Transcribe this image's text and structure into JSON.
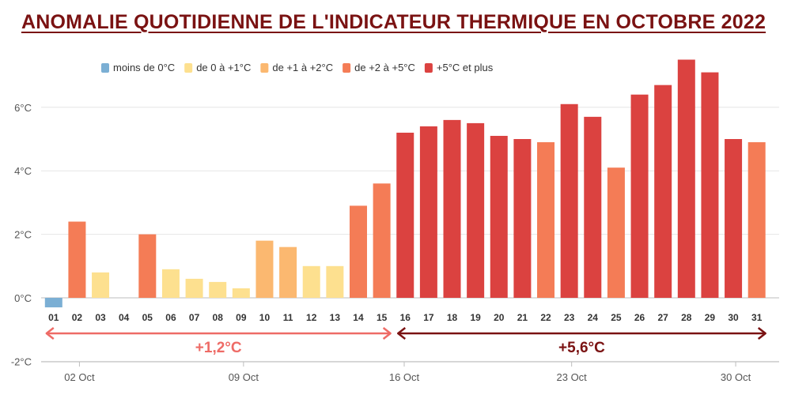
{
  "title": "ANOMALIE QUOTIDIENNE DE L'INDICATEUR THERMIQUE EN OCTOBRE 2022",
  "colors": {
    "title": "#7a1212",
    "below0": "#7bafd4",
    "0to1": "#fde08f",
    "1to2": "#fbb870",
    "2to5": "#f47c56",
    "5plus": "#db4240",
    "annotation_left": "#ee6b66",
    "annotation_right": "#7a1212"
  },
  "legend": [
    {
      "label": "moins de 0°C",
      "color": "#7bafd4"
    },
    {
      "label": "de 0 à +1°C",
      "color": "#fde08f"
    },
    {
      "label": "de +1 à +2°C",
      "color": "#fbb870"
    },
    {
      "label": "de +2 à +5°C",
      "color": "#f47c56"
    },
    {
      "label": "+5°C et plus",
      "color": "#db4240"
    }
  ],
  "chart_data": {
    "type": "bar",
    "title": "ANOMALIE QUOTIDIENNE DE L'INDICATEUR THERMIQUE EN OCTOBRE 2022",
    "categories": [
      "01",
      "02",
      "03",
      "04",
      "05",
      "06",
      "07",
      "08",
      "09",
      "10",
      "11",
      "12",
      "13",
      "14",
      "15",
      "16",
      "17",
      "18",
      "19",
      "20",
      "21",
      "22",
      "23",
      "24",
      "25",
      "26",
      "27",
      "28",
      "29",
      "30",
      "31"
    ],
    "values": [
      -0.3,
      2.4,
      0.8,
      0.0,
      2.0,
      0.9,
      0.6,
      0.5,
      0.3,
      1.8,
      1.6,
      1.0,
      1.0,
      2.9,
      3.6,
      5.2,
      5.4,
      5.6,
      5.5,
      5.1,
      5.0,
      4.9,
      6.1,
      5.7,
      4.1,
      6.4,
      6.7,
      7.5,
      7.1,
      5.0,
      4.9
    ],
    "ylim": [
      -2,
      7.5
    ],
    "yticks": [
      "-2°C",
      "0°C",
      "2°C",
      "4°C",
      "6°C"
    ],
    "ytick_values": [
      -2,
      0,
      2,
      4,
      6
    ],
    "xticks": [
      "02 Oct",
      "09 Oct",
      "16 Oct",
      "23 Oct",
      "30 Oct"
    ],
    "xtick_days": [
      2,
      9,
      16,
      23,
      30
    ],
    "grid": true,
    "legend_position": "top-left",
    "annotations": [
      {
        "label": "+1,2°C",
        "from_day": 1,
        "to_day": 15
      },
      {
        "label": "+5,6°C",
        "from_day": 16,
        "to_day": 31
      }
    ]
  }
}
